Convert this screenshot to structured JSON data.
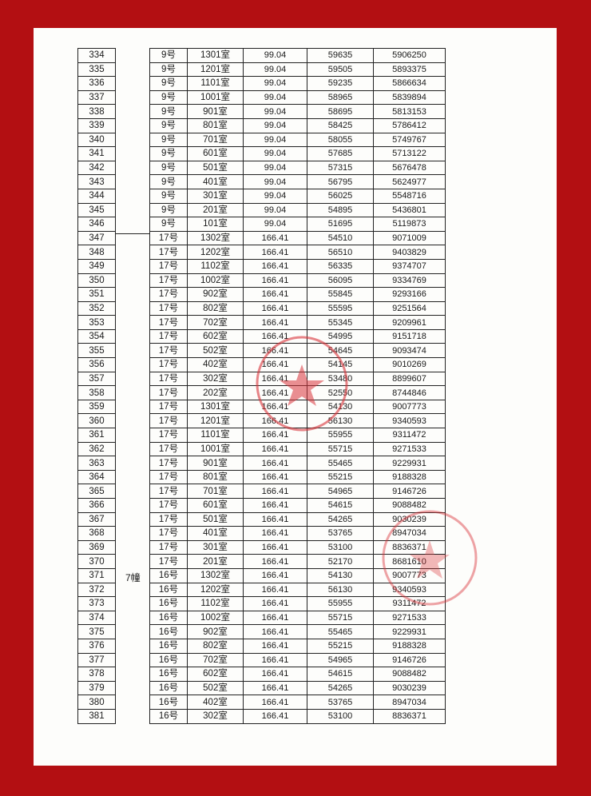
{
  "colors": {
    "background": "#b30f12",
    "paper": "#fdfdfb",
    "stamp": "#d9333a"
  },
  "group_label": "7幢",
  "rows": [
    [
      "334",
      "9号",
      "1301室",
      "99.04",
      "59635",
      "5906250"
    ],
    [
      "335",
      "9号",
      "1201室",
      "99.04",
      "59505",
      "5893375"
    ],
    [
      "336",
      "9号",
      "1101室",
      "99.04",
      "59235",
      "5866634"
    ],
    [
      "337",
      "9号",
      "1001室",
      "99.04",
      "58965",
      "5839894"
    ],
    [
      "338",
      "9号",
      "901室",
      "99.04",
      "58695",
      "5813153"
    ],
    [
      "339",
      "9号",
      "801室",
      "99.04",
      "58425",
      "5786412"
    ],
    [
      "340",
      "9号",
      "701室",
      "99.04",
      "58055",
      "5749767"
    ],
    [
      "341",
      "9号",
      "601室",
      "99.04",
      "57685",
      "5713122"
    ],
    [
      "342",
      "9号",
      "501室",
      "99.04",
      "57315",
      "5676478"
    ],
    [
      "343",
      "9号",
      "401室",
      "99.04",
      "56795",
      "5624977"
    ],
    [
      "344",
      "9号",
      "301室",
      "99.04",
      "56025",
      "5548716"
    ],
    [
      "345",
      "9号",
      "201室",
      "99.04",
      "54895",
      "5436801"
    ],
    [
      "346",
      "9号",
      "101室",
      "99.04",
      "51695",
      "5119873"
    ],
    [
      "347",
      "17号",
      "1302室",
      "166.41",
      "54510",
      "9071009"
    ],
    [
      "348",
      "17号",
      "1202室",
      "166.41",
      "56510",
      "9403829"
    ],
    [
      "349",
      "17号",
      "1102室",
      "166.41",
      "56335",
      "9374707"
    ],
    [
      "350",
      "17号",
      "1002室",
      "166.41",
      "56095",
      "9334769"
    ],
    [
      "351",
      "17号",
      "902室",
      "166.41",
      "55845",
      "9293166"
    ],
    [
      "352",
      "17号",
      "802室",
      "166.41",
      "55595",
      "9251564"
    ],
    [
      "353",
      "17号",
      "702室",
      "166.41",
      "55345",
      "9209961"
    ],
    [
      "354",
      "17号",
      "602室",
      "166.41",
      "54995",
      "9151718"
    ],
    [
      "355",
      "17号",
      "502室",
      "166.41",
      "54645",
      "9093474"
    ],
    [
      "356",
      "17号",
      "402室",
      "166.41",
      "54145",
      "9010269"
    ],
    [
      "357",
      "17号",
      "302室",
      "166.41",
      "53480",
      "8899607"
    ],
    [
      "358",
      "17号",
      "202室",
      "166.41",
      "52550",
      "8744846"
    ],
    [
      "359",
      "17号",
      "1301室",
      "166.41",
      "54130",
      "9007773"
    ],
    [
      "360",
      "17号",
      "1201室",
      "166.41",
      "56130",
      "9340593"
    ],
    [
      "361",
      "17号",
      "1101室",
      "166.41",
      "55955",
      "9311472"
    ],
    [
      "362",
      "17号",
      "1001室",
      "166.41",
      "55715",
      "9271533"
    ],
    [
      "363",
      "17号",
      "901室",
      "166.41",
      "55465",
      "9229931"
    ],
    [
      "364",
      "17号",
      "801室",
      "166.41",
      "55215",
      "9188328"
    ],
    [
      "365",
      "17号",
      "701室",
      "166.41",
      "54965",
      "9146726"
    ],
    [
      "366",
      "17号",
      "601室",
      "166.41",
      "54615",
      "9088482"
    ],
    [
      "367",
      "17号",
      "501室",
      "166.41",
      "54265",
      "9030239"
    ],
    [
      "368",
      "17号",
      "401室",
      "166.41",
      "53765",
      "8947034"
    ],
    [
      "369",
      "17号",
      "301室",
      "166.41",
      "53100",
      "8836371"
    ],
    [
      "370",
      "17号",
      "201室",
      "166.41",
      "52170",
      "8681610"
    ],
    [
      "371",
      "16号",
      "1302室",
      "166.41",
      "54130",
      "9007773"
    ],
    [
      "372",
      "16号",
      "1202室",
      "166.41",
      "56130",
      "9340593"
    ],
    [
      "373",
      "16号",
      "1102室",
      "166.41",
      "55955",
      "9311472"
    ],
    [
      "374",
      "16号",
      "1002室",
      "166.41",
      "55715",
      "9271533"
    ],
    [
      "375",
      "16号",
      "902室",
      "166.41",
      "55465",
      "9229931"
    ],
    [
      "376",
      "16号",
      "802室",
      "166.41",
      "55215",
      "9188328"
    ],
    [
      "377",
      "16号",
      "702室",
      "166.41",
      "54965",
      "9146726"
    ],
    [
      "378",
      "16号",
      "602室",
      "166.41",
      "54615",
      "9088482"
    ],
    [
      "379",
      "16号",
      "502室",
      "166.41",
      "54265",
      "9030239"
    ],
    [
      "380",
      "16号",
      "402室",
      "166.41",
      "53765",
      "8947034"
    ],
    [
      "381",
      "16号",
      "302室",
      "166.41",
      "53100",
      "8836371"
    ]
  ]
}
